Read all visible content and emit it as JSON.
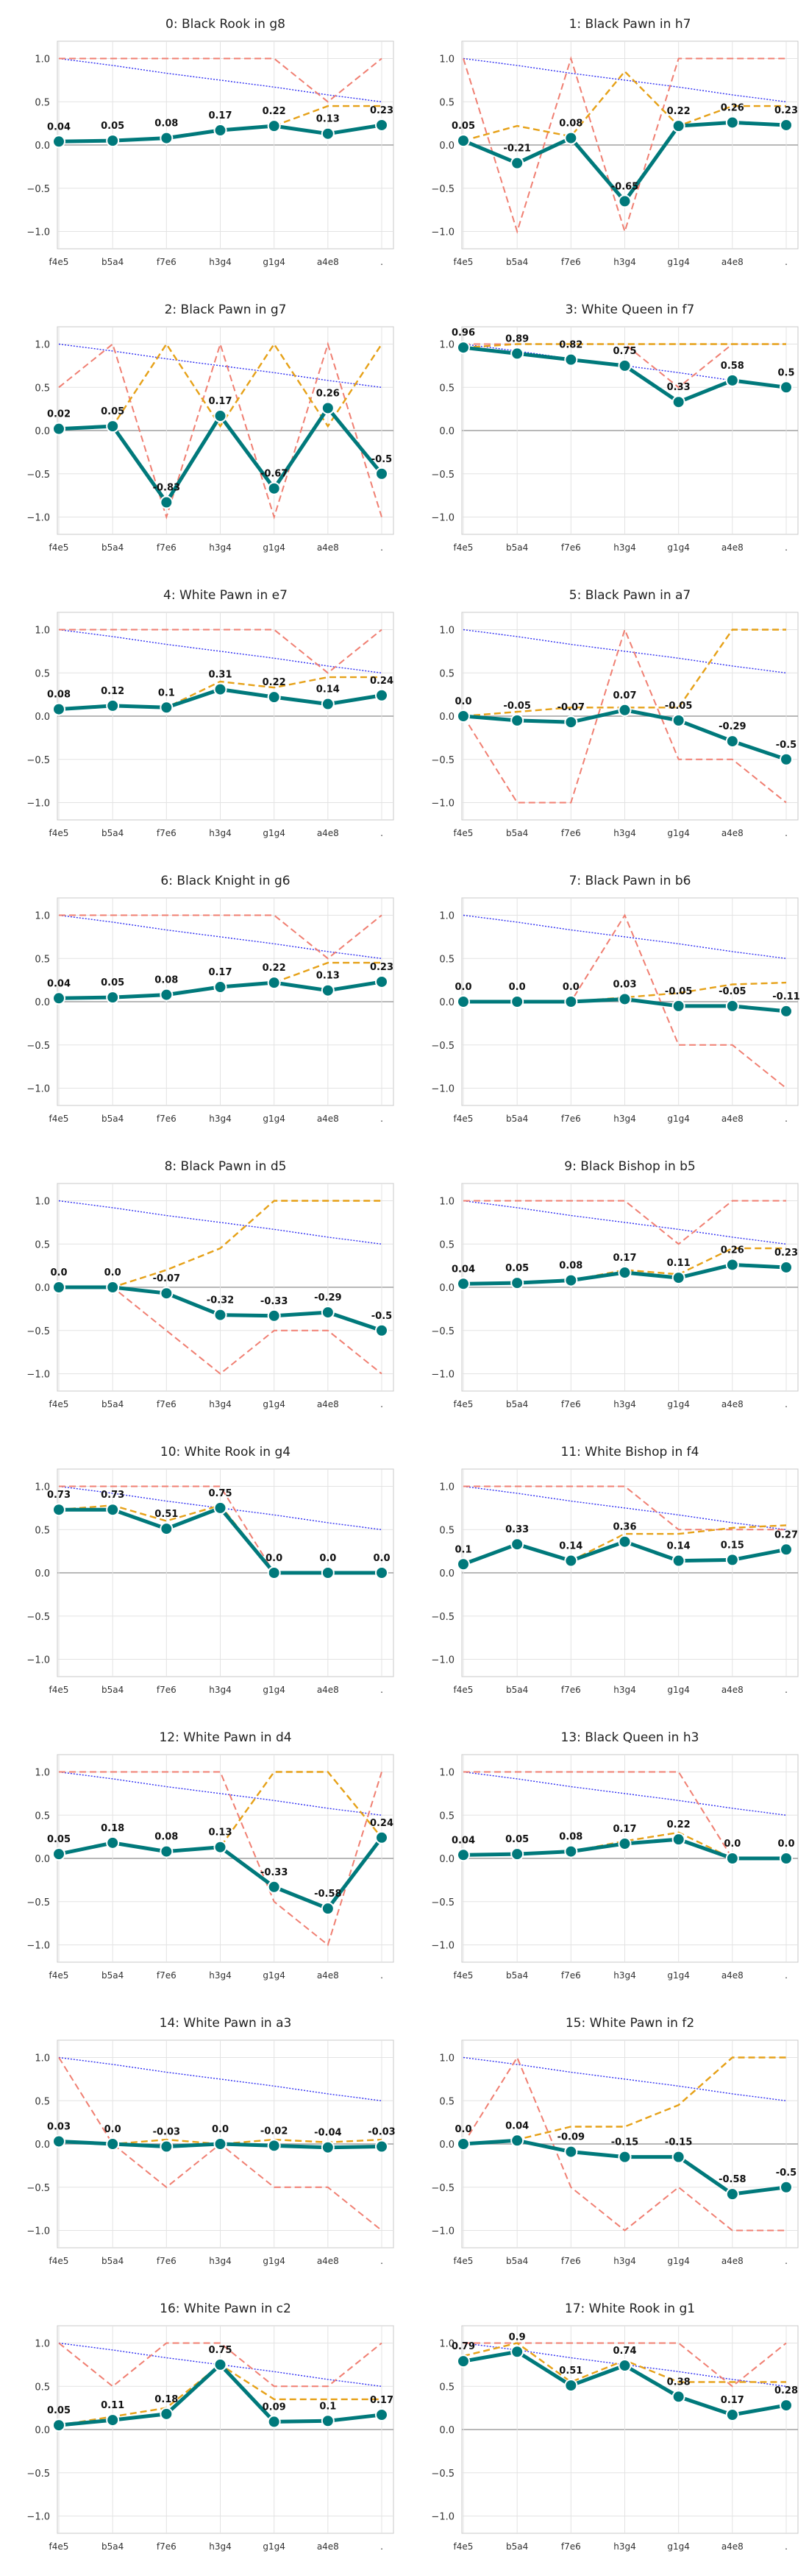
{
  "x_categories": [
    "f4e5",
    "b5a4",
    "f7e6",
    "h3g4",
    "g1g4",
    "a4e8",
    "."
  ],
  "y_ticks": [
    "−1.0",
    "−0.5",
    "0.0",
    "0.5",
    "1.0"
  ],
  "colors": {
    "main": "#00797b",
    "orange": "#e6a118",
    "red": "#f07f72",
    "blue": "#2f2ff2",
    "grid": "#e3e3e3",
    "zero": "#a0a0a0",
    "frame": "#c8c8c8"
  },
  "chart_data": [
    {
      "type": "line",
      "title": "0: Black Rook in g8",
      "series": [
        {
          "values": [
            0.04,
            0.05,
            0.08,
            0.17,
            0.22,
            0.13,
            0.23
          ],
          "labels": [
            "0.04",
            "0.05",
            "0.08",
            "0.17",
            "0.22",
            "0.13",
            "0.23"
          ]
        },
        {
          "values": [
            0.04,
            0.05,
            0.08,
            0.17,
            0.22,
            0.45,
            0.45
          ]
        },
        {
          "values": [
            1,
            1,
            1,
            1,
            1,
            0.5,
            1
          ]
        },
        {
          "values": [
            1,
            0.92,
            0.83,
            0.75,
            0.67,
            0.58,
            0.5
          ]
        }
      ]
    },
    {
      "type": "line",
      "title": "1: Black Pawn in h7",
      "series": [
        {
          "values": [
            0.05,
            -0.21,
            0.08,
            -0.65,
            0.22,
            0.26,
            0.23
          ],
          "labels": [
            "0.05",
            "-0.21",
            "0.08",
            "-0.65",
            "0.22",
            "0.26",
            "0.23"
          ]
        },
        {
          "values": [
            0.05,
            0.22,
            0.1,
            0.85,
            0.22,
            0.45,
            0.45
          ]
        },
        {
          "values": [
            1,
            -1,
            1,
            -1,
            1,
            1,
            1
          ]
        },
        {
          "values": [
            1,
            0.92,
            0.83,
            0.75,
            0.67,
            0.58,
            0.5
          ]
        }
      ]
    },
    {
      "type": "line",
      "title": "2: Black Pawn in g7",
      "series": [
        {
          "values": [
            0.02,
            0.05,
            -0.83,
            0.17,
            -0.67,
            0.26,
            -0.5
          ],
          "labels": [
            "0.02",
            "0.05",
            "-0.83",
            "0.17",
            "-0.67",
            "0.26",
            "-0.5"
          ]
        },
        {
          "values": [
            0.02,
            0.05,
            1,
            0.05,
            1,
            0.05,
            1
          ]
        },
        {
          "values": [
            0.5,
            1,
            -1,
            1,
            -1,
            1,
            -1
          ]
        },
        {
          "values": [
            1,
            0.92,
            0.83,
            0.75,
            0.67,
            0.58,
            0.5
          ]
        }
      ]
    },
    {
      "type": "line",
      "title": "3: White Queen in f7",
      "series": [
        {
          "values": [
            0.96,
            0.89,
            0.82,
            0.75,
            0.33,
            0.58,
            0.5
          ],
          "labels": [
            "0.96",
            "0.89",
            "0.82",
            "0.75",
            "0.33",
            "0.58",
            "0.5"
          ]
        },
        {
          "values": [
            0.96,
            1,
            1,
            1,
            1,
            1,
            1
          ]
        },
        {
          "values": [
            1,
            1,
            1,
            1,
            0.5,
            1,
            1
          ]
        },
        {
          "values": [
            1,
            0.92,
            0.83,
            0.75,
            0.67,
            0.58,
            0.5
          ]
        }
      ]
    },
    {
      "type": "line",
      "title": "4: White Pawn in e7",
      "series": [
        {
          "values": [
            0.08,
            0.12,
            0.1,
            0.31,
            0.22,
            0.14,
            0.24
          ],
          "labels": [
            "0.08",
            "0.12",
            "0.1",
            "0.31",
            "0.22",
            "0.14",
            "0.24"
          ]
        },
        {
          "values": [
            0.08,
            0.12,
            0.1,
            0.4,
            0.33,
            0.45,
            0.45
          ]
        },
        {
          "values": [
            1,
            1,
            1,
            1,
            1,
            0.5,
            1
          ]
        },
        {
          "values": [
            1,
            0.92,
            0.83,
            0.75,
            0.67,
            0.58,
            0.5
          ]
        }
      ]
    },
    {
      "type": "line",
      "title": "5: Black Pawn in a7",
      "series": [
        {
          "values": [
            0.0,
            -0.05,
            -0.07,
            0.07,
            -0.05,
            -0.29,
            -0.5
          ],
          "labels": [
            "0.0",
            "-0.05",
            "-0.07",
            "0.07",
            "-0.05",
            "-0.29",
            "-0.5"
          ]
        },
        {
          "values": [
            0.0,
            0.05,
            0.1,
            0.1,
            0.1,
            1,
            1
          ]
        },
        {
          "values": [
            0,
            -1,
            -1,
            1,
            -0.5,
            -0.5,
            -1
          ]
        },
        {
          "values": [
            1,
            0.92,
            0.83,
            0.75,
            0.67,
            0.58,
            0.5
          ]
        }
      ]
    },
    {
      "type": "line",
      "title": "6: Black Knight in g6",
      "series": [
        {
          "values": [
            0.04,
            0.05,
            0.08,
            0.17,
            0.22,
            0.13,
            0.23
          ],
          "labels": [
            "0.04",
            "0.05",
            "0.08",
            "0.17",
            "0.22",
            "0.13",
            "0.23"
          ]
        },
        {
          "values": [
            0.04,
            0.05,
            0.08,
            0.17,
            0.22,
            0.45,
            0.45
          ]
        },
        {
          "values": [
            1,
            1,
            1,
            1,
            1,
            0.5,
            1
          ]
        },
        {
          "values": [
            1,
            0.92,
            0.83,
            0.75,
            0.67,
            0.58,
            0.5
          ]
        }
      ]
    },
    {
      "type": "line",
      "title": "7: Black Pawn in b6",
      "series": [
        {
          "values": [
            0.0,
            0.0,
            0.0,
            0.03,
            -0.05,
            -0.05,
            -0.11
          ],
          "labels": [
            "0.0",
            "0.0",
            "0.0",
            "0.03",
            "-0.05",
            "-0.05",
            "-0.11"
          ]
        },
        {
          "values": [
            0.0,
            0.0,
            0.0,
            0.05,
            0.1,
            0.2,
            0.22
          ]
        },
        {
          "values": [
            0,
            0,
            0,
            1,
            -0.5,
            -0.5,
            -1
          ]
        },
        {
          "values": [
            1,
            0.92,
            0.83,
            0.75,
            0.67,
            0.58,
            0.5
          ]
        }
      ]
    },
    {
      "type": "line",
      "title": "8: Black Pawn in d5",
      "series": [
        {
          "values": [
            0.0,
            0.0,
            -0.07,
            -0.32,
            -0.33,
            -0.29,
            -0.5
          ],
          "labels": [
            "0.0",
            "0.0",
            "-0.07",
            "-0.32",
            "-0.33",
            "-0.29",
            "-0.5"
          ]
        },
        {
          "values": [
            0.0,
            0.0,
            0.2,
            0.45,
            1,
            1,
            1
          ]
        },
        {
          "values": [
            0,
            0,
            -0.5,
            -1,
            -0.5,
            -0.5,
            -1
          ]
        },
        {
          "values": [
            1,
            0.92,
            0.83,
            0.75,
            0.67,
            0.58,
            0.5
          ]
        }
      ]
    },
    {
      "type": "line",
      "title": "9: Black Bishop in b5",
      "series": [
        {
          "values": [
            0.04,
            0.05,
            0.08,
            0.17,
            0.11,
            0.26,
            0.23
          ],
          "labels": [
            "0.04",
            "0.05",
            "0.08",
            "0.17",
            "0.11",
            "0.26",
            "0.23"
          ]
        },
        {
          "values": [
            0.04,
            0.05,
            0.08,
            0.2,
            0.15,
            0.45,
            0.45
          ]
        },
        {
          "values": [
            1,
            1,
            1,
            1,
            0.5,
            1,
            1
          ]
        },
        {
          "values": [
            1,
            0.92,
            0.83,
            0.75,
            0.67,
            0.58,
            0.5
          ]
        }
      ]
    },
    {
      "type": "line",
      "title": "10: White Rook in g4",
      "series": [
        {
          "values": [
            0.73,
            0.73,
            0.51,
            0.75,
            0.0,
            0.0,
            0.0
          ],
          "labels": [
            "0.73",
            "0.73",
            "0.51",
            "0.75",
            "0.0",
            "0.0",
            "0.0"
          ]
        },
        {
          "values": [
            0.73,
            0.78,
            0.6,
            0.78,
            0.0,
            0.0,
            0.0
          ]
        },
        {
          "values": [
            1,
            1,
            1,
            1,
            0,
            0,
            0
          ]
        },
        {
          "values": [
            1,
            0.92,
            0.83,
            0.75,
            0.67,
            0.58,
            0.5
          ]
        }
      ]
    },
    {
      "type": "line",
      "title": "11: White Bishop in f4",
      "series": [
        {
          "values": [
            0.1,
            0.33,
            0.14,
            0.36,
            0.14,
            0.15,
            0.27
          ],
          "labels": [
            "0.1",
            "0.33",
            "0.14",
            "0.36",
            "0.14",
            "0.15",
            "0.27"
          ]
        },
        {
          "values": [
            0.1,
            0.33,
            0.14,
            0.45,
            0.45,
            0.52,
            0.55
          ]
        },
        {
          "values": [
            1,
            1,
            1,
            1,
            0.5,
            0.5,
            0.5
          ]
        },
        {
          "values": [
            1,
            0.92,
            0.83,
            0.75,
            0.67,
            0.58,
            0.5
          ]
        }
      ]
    },
    {
      "type": "line",
      "title": "12: White Pawn in d4",
      "series": [
        {
          "values": [
            0.05,
            0.18,
            0.08,
            0.13,
            -0.33,
            -0.58,
            0.24
          ],
          "labels": [
            "0.05",
            "0.18",
            "0.08",
            "0.13",
            "-0.33",
            "-0.58",
            "0.24"
          ]
        },
        {
          "values": [
            0.05,
            0.18,
            0.08,
            0.13,
            1,
            1,
            0.24
          ]
        },
        {
          "values": [
            1,
            1,
            1,
            1,
            -0.5,
            -1,
            1
          ]
        },
        {
          "values": [
            1,
            0.92,
            0.83,
            0.75,
            0.67,
            0.58,
            0.5
          ]
        }
      ]
    },
    {
      "type": "line",
      "title": "13: Black Queen in h3",
      "series": [
        {
          "values": [
            0.04,
            0.05,
            0.08,
            0.17,
            0.22,
            0.0,
            0.0
          ],
          "labels": [
            "0.04",
            "0.05",
            "0.08",
            "0.17",
            "0.22",
            "0.0",
            "0.0"
          ]
        },
        {
          "values": [
            0.04,
            0.05,
            0.08,
            0.2,
            0.3,
            0.0,
            0.0
          ]
        },
        {
          "values": [
            1,
            1,
            1,
            1,
            1,
            0,
            0
          ]
        },
        {
          "values": [
            1,
            0.92,
            0.83,
            0.75,
            0.67,
            0.58,
            0.5
          ]
        }
      ]
    },
    {
      "type": "line",
      "title": "14: White Pawn in a3",
      "series": [
        {
          "values": [
            0.03,
            0.0,
            -0.03,
            0.0,
            -0.02,
            -0.04,
            -0.03
          ],
          "labels": [
            "0.03",
            "0.0",
            "-0.03",
            "0.0",
            "-0.02",
            "-0.04",
            "-0.03"
          ]
        },
        {
          "values": [
            0.03,
            0.0,
            0.05,
            0.0,
            0.05,
            0.02,
            0.05
          ]
        },
        {
          "values": [
            1,
            0,
            -0.5,
            0,
            -0.5,
            -0.5,
            -1
          ]
        },
        {
          "values": [
            1,
            0.92,
            0.83,
            0.75,
            0.67,
            0.58,
            0.5
          ]
        }
      ]
    },
    {
      "type": "line",
      "title": "15: White Pawn in f2",
      "series": [
        {
          "values": [
            0.0,
            0.04,
            -0.09,
            -0.15,
            -0.15,
            -0.58,
            -0.5
          ],
          "labels": [
            "0.0",
            "0.04",
            "-0.09",
            "-0.15",
            "-0.15",
            "-0.58",
            "-0.5"
          ]
        },
        {
          "values": [
            0.0,
            0.05,
            0.2,
            0.2,
            0.45,
            1,
            1
          ]
        },
        {
          "values": [
            0,
            1,
            -0.5,
            -1,
            -0.5,
            -1,
            -1
          ]
        },
        {
          "values": [
            1,
            0.92,
            0.83,
            0.75,
            0.67,
            0.58,
            0.5
          ]
        }
      ]
    },
    {
      "type": "line",
      "title": "16: White Pawn in c2",
      "series": [
        {
          "values": [
            0.05,
            0.11,
            0.18,
            0.75,
            0.09,
            0.1,
            0.17
          ],
          "labels": [
            "0.05",
            "0.11",
            "0.18",
            "0.75",
            "0.09",
            "0.1",
            "0.17"
          ]
        },
        {
          "values": [
            0.05,
            0.15,
            0.25,
            0.75,
            0.35,
            0.35,
            0.35
          ]
        },
        {
          "values": [
            1,
            0.5,
            1,
            1,
            0.5,
            0.5,
            1
          ]
        },
        {
          "values": [
            1,
            0.92,
            0.83,
            0.75,
            0.67,
            0.58,
            0.5
          ]
        }
      ]
    },
    {
      "type": "line",
      "title": "17: White Rook in g1",
      "series": [
        {
          "values": [
            0.79,
            0.9,
            0.51,
            0.74,
            0.38,
            0.17,
            0.28
          ],
          "labels": [
            "0.79",
            "0.9",
            "0.51",
            "0.74",
            "0.38",
            "0.17",
            "0.28"
          ]
        },
        {
          "values": [
            0.85,
            1,
            0.55,
            0.8,
            0.55,
            0.55,
            0.55
          ]
        },
        {
          "values": [
            1,
            1,
            1,
            1,
            1,
            0.5,
            1
          ]
        },
        {
          "values": [
            1,
            0.92,
            0.83,
            0.75,
            0.67,
            0.58,
            0.5
          ]
        }
      ]
    }
  ]
}
